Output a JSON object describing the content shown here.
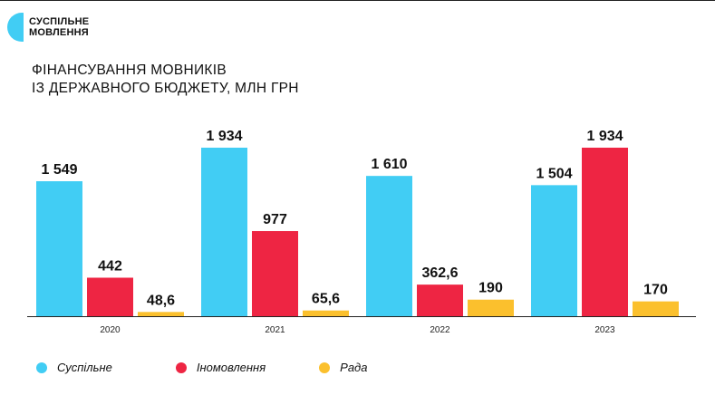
{
  "brand": {
    "line1": "СУСПІЛЬНЕ",
    "line2": "МОВЛЕННЯ",
    "icon": "half-circle-logo-icon",
    "color": "#41cdf4"
  },
  "title": {
    "line1": "ФІНАНСУВАННЯ МОВНИКІВ",
    "line2": "ІЗ ДЕРЖАВНОГО БЮДЖЕТУ, МЛН ГРН"
  },
  "chart_data": {
    "type": "bar",
    "title": "ФІНАНСУВАННЯ МОВНИКІВ ІЗ ДЕРЖАВНОГО БЮДЖЕТУ, МЛН ГРН",
    "categories": [
      "2020",
      "2021",
      "2022",
      "2023"
    ],
    "series": [
      {
        "name": "Суспільне",
        "color": "#41cdf4",
        "values": [
          1549,
          1934,
          1610,
          1504
        ],
        "labels": [
          "1 549",
          "1 934",
          "1 610",
          "1 504"
        ]
      },
      {
        "name": "Іномовлення",
        "color": "#ee2543",
        "values": [
          442,
          977,
          362.6,
          1934
        ],
        "labels": [
          "442",
          "977",
          "362,6",
          "1 934"
        ]
      },
      {
        "name": "Рада",
        "color": "#fbc02d",
        "values": [
          48.6,
          65.6,
          190,
          170
        ],
        "labels": [
          "48,6",
          "65,6",
          "190",
          "170"
        ]
      }
    ],
    "ylim": [
      0,
      1934
    ],
    "grid": false,
    "legend": "bottom-left"
  }
}
